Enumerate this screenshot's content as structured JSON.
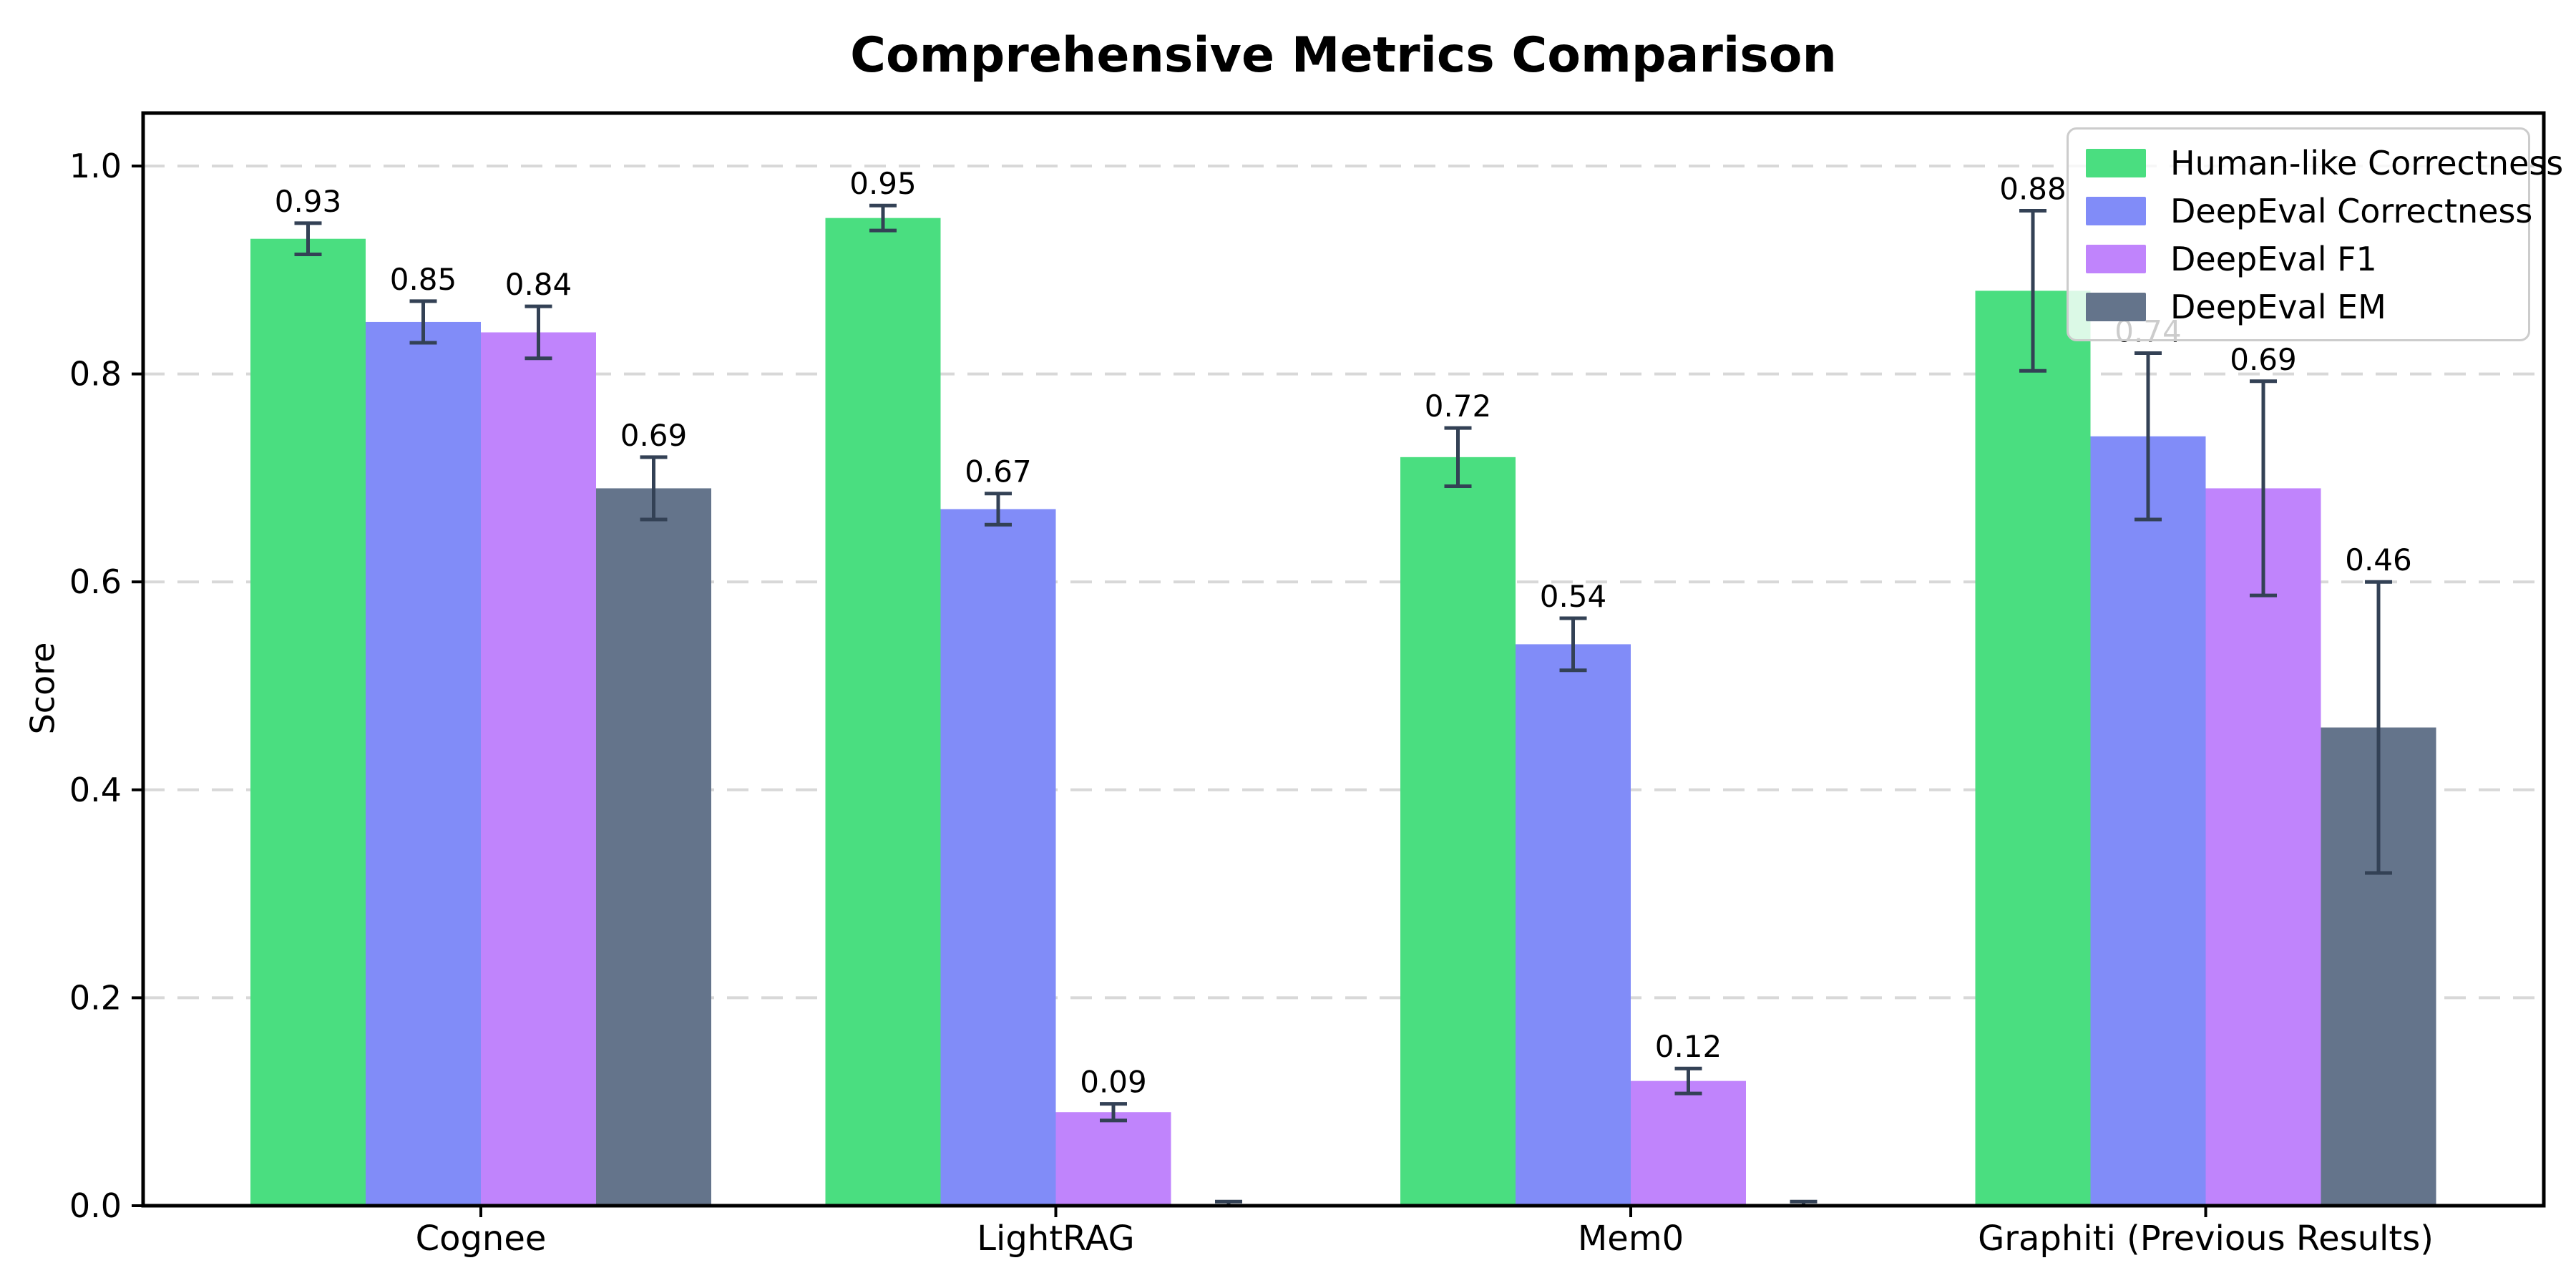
{
  "chart_data": {
    "type": "bar",
    "title": "Comprehensive Metrics Comparison",
    "ylabel": "Score",
    "xlabel": "",
    "categories": [
      "Cognee",
      "LightRAG",
      "Mem0",
      "Graphiti (Previous Results)"
    ],
    "series": [
      {
        "name": "Human-like Correctness",
        "color": "#4ade80",
        "values": [
          0.93,
          0.95,
          0.72,
          0.88
        ],
        "errors": [
          0.015,
          0.012,
          0.028,
          0.077
        ],
        "labels": [
          "0.93",
          "0.95",
          "0.72",
          "0.88"
        ]
      },
      {
        "name": "DeepEval Correctness",
        "color": "#818cf8",
        "values": [
          0.85,
          0.67,
          0.54,
          0.74
        ],
        "errors": [
          0.02,
          0.015,
          0.025,
          0.08
        ],
        "labels": [
          "0.85",
          "0.67",
          "0.54",
          "0.74"
        ]
      },
      {
        "name": "DeepEval F1",
        "color": "#c084fc",
        "values": [
          0.84,
          0.09,
          0.12,
          0.69
        ],
        "errors": [
          0.025,
          0.008,
          0.012,
          0.103
        ],
        "labels": [
          "0.84",
          "0.09",
          "0.12",
          "0.69"
        ]
      },
      {
        "name": "DeepEval EM",
        "color": "#64748b",
        "values": [
          0.69,
          0.0,
          0.0,
          0.46
        ],
        "errors": [
          0.03,
          0.004,
          0.004,
          0.14
        ],
        "labels": [
          "0.69",
          "",
          "",
          "0.46"
        ]
      }
    ],
    "yticks": {
      "values": [
        0.0,
        0.2,
        0.4,
        0.6,
        0.8,
        1.0
      ],
      "labels": [
        "0.0",
        "0.2",
        "0.4",
        "0.6",
        "0.8",
        "1.0"
      ]
    },
    "ylim": [
      0,
      1.05
    ],
    "grid": "horizontal-dashed",
    "legend_position": "upper right",
    "colors": {
      "error_bar": "#334155",
      "grid_line": "#d8d8d8",
      "spine": "#000000",
      "background": "#ffffff",
      "legend_border": "#cccccc",
      "text": "#000000"
    }
  }
}
